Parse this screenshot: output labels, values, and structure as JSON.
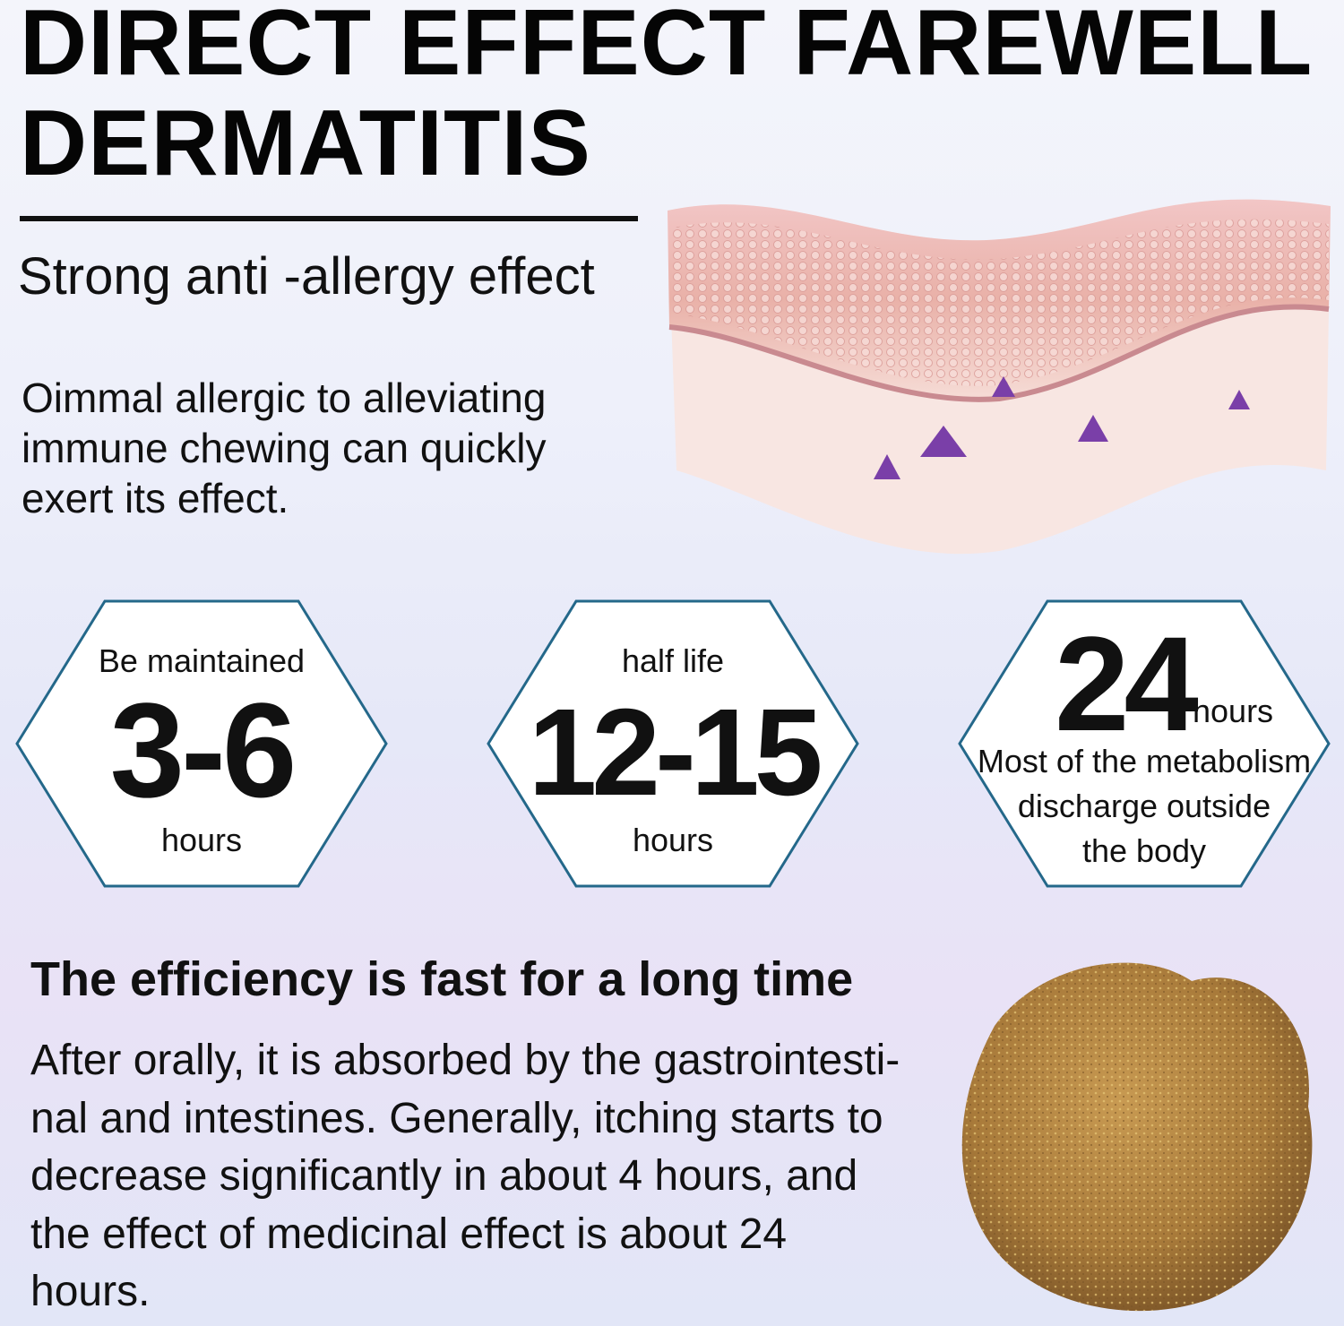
{
  "header": {
    "title_line1": "DIRECT EFFECT FAREWELL",
    "title_line2": "DERMATITIS",
    "subtitle": "Strong anti -allergy effect"
  },
  "intro": {
    "line1": "Oimmal allergic to alleviating",
    "line2": "immune chewing can quickly",
    "line3": "exert its effect."
  },
  "hexagons": [
    {
      "top": "Be maintained",
      "value": "3-6",
      "bottom": "hours"
    },
    {
      "top": "half life",
      "value": "12-15",
      "bottom": "hours"
    },
    {
      "value": "24",
      "unit": "hours",
      "line1": "Most of the metabolism",
      "line2": "discharge outside",
      "line3": "the body"
    }
  ],
  "efficiency": {
    "heading": "The efficiency is fast for a long time",
    "lines": [
      "After orally, it is absorbed by the gastrointesti-",
      "nal and intestines. Generally, itching starts to",
      "decrease significantly in about 4 hours, and",
      "the effect of medicinal effect is about 24",
      "hours."
    ]
  },
  "colors": {
    "hex_stroke": "#24688a",
    "triangle": "#7a3fa8",
    "skin": "#eab8b8",
    "chew": "#a87a3a"
  }
}
